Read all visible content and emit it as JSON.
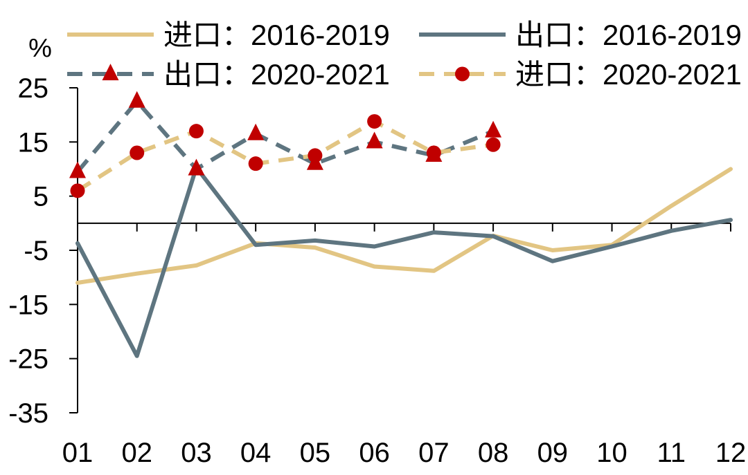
{
  "chart_data": {
    "type": "line",
    "ylabel": "%",
    "ylim": [
      -35,
      25
    ],
    "yticks": [
      25,
      15,
      5,
      -5,
      -15,
      -25,
      -35
    ],
    "categories": [
      "01",
      "02",
      "03",
      "04",
      "05",
      "06",
      "07",
      "08",
      "09",
      "10",
      "11",
      "12"
    ],
    "grid": false,
    "legend_position": "top",
    "series": [
      {
        "name": "进口：2016-2019",
        "color": "#E2C583",
        "dash": "solid",
        "marker": "none",
        "values": [
          -11,
          -9.3,
          -7.8,
          -3.7,
          -4.5,
          -8,
          -8.8,
          -2.3,
          -5,
          -4,
          3.2,
          10
        ]
      },
      {
        "name": "出口：2016-2019",
        "color": "#5E7580",
        "dash": "solid",
        "marker": "none",
        "values": [
          -3.7,
          -24.5,
          10.3,
          -4,
          -3.2,
          -4.3,
          -1.7,
          -2.4,
          -7,
          -4.3,
          -1.4,
          0.6
        ]
      },
      {
        "name": "出口：2020-2021",
        "color": "#5E7580",
        "dash": "dashed",
        "marker": "triangle",
        "marker_color": "#C00000",
        "values": [
          9.5,
          22.5,
          10,
          16.5,
          11,
          15,
          12.5,
          17,
          null,
          null,
          null,
          null
        ]
      },
      {
        "name": "进口：2020-2021",
        "color": "#E2C583",
        "dash": "dashed",
        "marker": "circle",
        "marker_color": "#C00000",
        "values": [
          6,
          13,
          17,
          11,
          12.5,
          18.8,
          13,
          14.5,
          null,
          null,
          null,
          null
        ]
      }
    ]
  }
}
